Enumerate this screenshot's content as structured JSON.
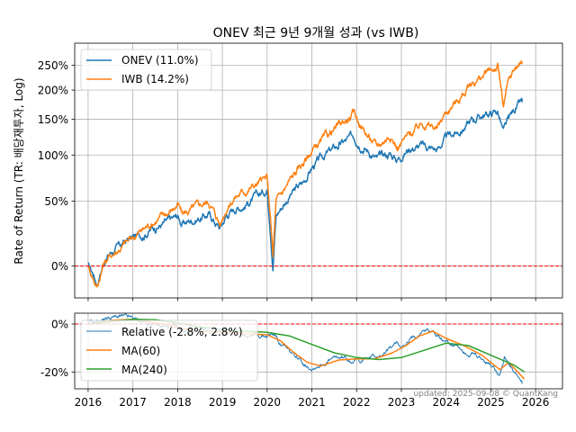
{
  "title": "ONEV 최근 9년 9개월 성과 (vs IWB)",
  "colors": {
    "onev": "#1f77b4",
    "iwb": "#ff7f0e",
    "ma240": "#2ca02c",
    "zero_line": "#ff0000",
    "grid": "#b0b0b0",
    "footer": "#808080"
  },
  "footer": "updated: 2025-09-08 © QuantKang",
  "chart_data": [
    {
      "type": "line",
      "ylabel": "Rate of Return (TR: 배당재투자, Log)",
      "y_scale": "log(1+r)",
      "ylim": [
        -18,
        302
      ],
      "yticks": [
        {
          "value": 0,
          "label": "0%"
        },
        {
          "value": 50,
          "label": "50%"
        },
        {
          "value": 100,
          "label": "100%"
        },
        {
          "value": 150,
          "label": "150%"
        },
        {
          "value": 200,
          "label": "200%"
        },
        {
          "value": 250,
          "label": "250%"
        }
      ],
      "xlim": [
        2015.7,
        2026.6
      ],
      "grid": true,
      "legend": "top-left",
      "baseline": 0,
      "series": [
        {
          "name": "ONEV (11.0%)",
          "x": [
            2016.0,
            2016.12,
            2016.2,
            2016.35,
            2016.5,
            2016.75,
            2016.9,
            2017.2,
            2017.5,
            2017.8,
            2018.0,
            2018.1,
            2018.3,
            2018.7,
            2018.95,
            2019.1,
            2019.3,
            2019.5,
            2019.8,
            2020.0,
            2020.13,
            2020.2,
            2020.5,
            2020.8,
            2021.0,
            2021.3,
            2021.6,
            2021.95,
            2022.2,
            2022.45,
            2022.75,
            2022.9,
            2023.2,
            2023.5,
            2023.8,
            2024.0,
            2024.3,
            2024.6,
            2024.8,
            2024.95,
            2025.15,
            2025.28,
            2025.4,
            2025.55,
            2025.7
          ],
          "values": [
            0,
            -5,
            -10,
            3,
            9,
            14,
            18,
            22,
            28,
            32,
            36,
            30,
            33,
            38,
            27,
            38,
            44,
            47,
            55,
            62,
            1,
            38,
            55,
            68,
            85,
            100,
            112,
            125,
            110,
            95,
            102,
            95,
            110,
            112,
            107,
            122,
            132,
            150,
            156,
            158,
            163,
            130,
            148,
            168,
            178
          ]
        },
        {
          "name": "IWB (14.2%)",
          "x": [
            2016.0,
            2016.12,
            2016.2,
            2016.35,
            2016.5,
            2016.75,
            2016.9,
            2017.2,
            2017.5,
            2017.8,
            2018.0,
            2018.1,
            2018.3,
            2018.7,
            2018.95,
            2019.1,
            2019.3,
            2019.5,
            2019.8,
            2020.0,
            2020.13,
            2020.2,
            2020.5,
            2020.8,
            2021.0,
            2021.3,
            2021.6,
            2021.95,
            2022.2,
            2022.45,
            2022.75,
            2022.9,
            2023.2,
            2023.5,
            2023.8,
            2024.0,
            2024.3,
            2024.6,
            2024.8,
            2024.95,
            2025.15,
            2025.28,
            2025.4,
            2025.55,
            2025.7
          ],
          "values": [
            0,
            -7,
            -12,
            2,
            7,
            13,
            17,
            25,
            33,
            40,
            47,
            38,
            42,
            50,
            30,
            45,
            55,
            60,
            68,
            72,
            5,
            48,
            70,
            90,
            105,
            122,
            140,
            158,
            130,
            110,
            128,
            110,
            128,
            145,
            135,
            162,
            185,
            215,
            225,
            235,
            248,
            170,
            215,
            245,
            258
          ]
        }
      ]
    },
    {
      "type": "line",
      "ylim": [
        -27,
        4.5
      ],
      "yticks": [
        {
          "value": 0,
          "label": "0%"
        },
        {
          "value": -20,
          "label": "-20%"
        }
      ],
      "xlim": [
        2015.7,
        2026.6
      ],
      "xticks": [
        "2016",
        "2017",
        "2018",
        "2019",
        "2020",
        "2021",
        "2022",
        "2023",
        "2024",
        "2025",
        "2026"
      ],
      "grid": true,
      "legend": "top-left",
      "baseline": 0,
      "series": [
        {
          "name": "Relative (-2.8%, 2.8%)",
          "x": [
            2016.0,
            2016.2,
            2016.4,
            2016.7,
            2017.0,
            2017.3,
            2017.6,
            2018.0,
            2018.4,
            2018.8,
            2019.0,
            2019.3,
            2019.7,
            2020.0,
            2020.15,
            2020.3,
            2020.5,
            2020.8,
            2021.0,
            2021.3,
            2021.6,
            2022.0,
            2022.3,
            2022.6,
            2022.9,
            2023.1,
            2023.3,
            2023.5,
            2023.7,
            2023.9,
            2024.1,
            2024.3,
            2024.5,
            2024.8,
            2025.0,
            2025.2,
            2025.3,
            2025.5,
            2025.7
          ],
          "values": [
            0,
            1,
            2.5,
            3,
            2,
            0.5,
            -1,
            -2,
            -3,
            -3.5,
            -3,
            -4,
            -4.5,
            -5,
            -4,
            -8,
            -12,
            -16,
            -18,
            -16,
            -14,
            -15,
            -14,
            -13,
            -8,
            -9,
            -5,
            -2,
            -3,
            -6,
            -8,
            -10,
            -12,
            -15,
            -17,
            -20,
            -14,
            -20,
            -25
          ]
        },
        {
          "name": "MA(60)",
          "x": [
            2016.0,
            2016.5,
            2017.0,
            2017.5,
            2018.0,
            2018.5,
            2019.0,
            2019.5,
            2020.0,
            2020.3,
            2020.6,
            2020.9,
            2021.2,
            2021.6,
            2022.0,
            2022.4,
            2022.8,
            2023.1,
            2023.4,
            2023.7,
            2024.0,
            2024.4,
            2024.8,
            2025.0,
            2025.2,
            2025.4,
            2025.6,
            2025.75
          ],
          "values": [
            0,
            1.5,
            2,
            0.5,
            -1.5,
            -3,
            -3.5,
            -4,
            -4.5,
            -7,
            -12,
            -16,
            -17.5,
            -15,
            -14.5,
            -14.5,
            -12,
            -9,
            -5,
            -3,
            -6,
            -9,
            -13,
            -16,
            -19,
            -16,
            -20,
            -23
          ]
        },
        {
          "name": "MA(240)",
          "x": [
            2016.0,
            2016.5,
            2017.0,
            2017.5,
            2018.0,
            2018.5,
            2019.0,
            2019.5,
            2020.0,
            2020.5,
            2021.0,
            2021.5,
            2022.0,
            2022.5,
            2023.0,
            2023.5,
            2024.0,
            2024.5,
            2025.0,
            2025.5,
            2025.75
          ],
          "values": [
            0,
            1,
            2,
            1.8,
            0.5,
            -1.2,
            -2.2,
            -3,
            -3.5,
            -5,
            -8.5,
            -12,
            -14,
            -14.8,
            -14,
            -11,
            -8,
            -9,
            -13,
            -17,
            -20
          ]
        }
      ]
    }
  ]
}
